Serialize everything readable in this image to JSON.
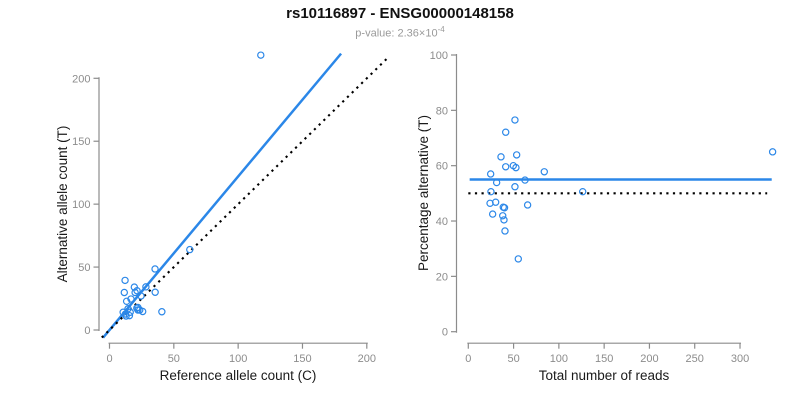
{
  "header": {
    "title": "rs10116897 - ENSG00000148158",
    "subtitle_prefix": "p-value: 2.36×10",
    "subtitle_exponent": "-4"
  },
  "colors": {
    "accent_blue": "#2b87e8",
    "dotted_black": "#000000",
    "axis_gray": "#8c8c8c",
    "tick_label_gray": "#8c8c8c",
    "axis_title_color": "#1a1a1a",
    "subtitle_gray": "#9a9a9a"
  },
  "chart_data": [
    {
      "id": "allele-count-scatter",
      "type": "scatter",
      "xlabel": "Reference allele count (C)",
      "ylabel": "Alternative allele count (T)",
      "xlim": [
        0,
        200
      ],
      "ylim": [
        0,
        220
      ],
      "xticks": [
        0,
        50,
        100,
        150,
        200
      ],
      "yticks": [
        0,
        50,
        100,
        150,
        200
      ],
      "grid": false,
      "legend": "none",
      "marker": "open-circle",
      "points": [
        [
          12.1,
          39.4
        ],
        [
          11.5,
          29.8
        ],
        [
          117.6,
          218.4
        ],
        [
          13.3,
          22.8
        ],
        [
          19.3,
          34.1
        ],
        [
          16.7,
          24.6
        ],
        [
          19.9,
          29.8
        ],
        [
          21.4,
          31.2
        ],
        [
          35.4,
          48.5
        ],
        [
          10.6,
          14.1
        ],
        [
          14.4,
          16.9
        ],
        [
          28.3,
          34.3
        ],
        [
          24.5,
          27.0
        ],
        [
          12.4,
          12.7
        ],
        [
          62.4,
          63.9
        ],
        [
          12.9,
          11.1
        ],
        [
          16.1,
          14.1
        ],
        [
          21.2,
          17.4
        ],
        [
          22.1,
          17.9
        ],
        [
          35.5,
          30.0
        ],
        [
          15.5,
          11.4
        ],
        [
          22.1,
          15.9
        ],
        [
          23.5,
          15.9
        ],
        [
          25.8,
          14.7
        ],
        [
          40.7,
          14.5
        ]
      ],
      "lines": [
        {
          "name": "fitted-line",
          "style": "solid",
          "color": "#2b87e8",
          "from": [
            -5,
            -6.1
          ],
          "to": [
            180,
            219.6
          ]
        },
        {
          "name": "identity-line",
          "style": "dotted",
          "color": "#000000",
          "from": [
            -6,
            -6
          ],
          "to": [
            216,
            216
          ]
        }
      ]
    },
    {
      "id": "percentage-vs-reads-scatter",
      "type": "scatter",
      "xlabel": "Total number of reads",
      "ylabel": "Percentage alternative (T)",
      "xlim": [
        0,
        336
      ],
      "ylim": [
        0,
        100
      ],
      "xticks": [
        0,
        50,
        100,
        150,
        200,
        250,
        300
      ],
      "yticks": [
        0,
        20,
        40,
        60,
        80,
        100
      ],
      "grid": false,
      "legend": "none",
      "marker": "open-circle",
      "points": [
        [
          51.5,
          76.5
        ],
        [
          41.3,
          72.1
        ],
        [
          336,
          65.0
        ],
        [
          36.1,
          63.2
        ],
        [
          53.4,
          63.9
        ],
        [
          41.3,
          59.6
        ],
        [
          49.7,
          60.0
        ],
        [
          52.6,
          59.3
        ],
        [
          83.9,
          57.8
        ],
        [
          24.7,
          57.0
        ],
        [
          31.3,
          53.9
        ],
        [
          62.6,
          54.8
        ],
        [
          51.5,
          52.4
        ],
        [
          25.0,
          50.6
        ],
        [
          126.3,
          50.6
        ],
        [
          24.0,
          46.4
        ],
        [
          30.2,
          46.8
        ],
        [
          38.6,
          45.0
        ],
        [
          40.0,
          44.8
        ],
        [
          65.5,
          45.8
        ],
        [
          26.9,
          42.5
        ],
        [
          38.0,
          41.9
        ],
        [
          39.4,
          40.4
        ],
        [
          40.5,
          36.4
        ],
        [
          55.2,
          26.3
        ]
      ],
      "lines": [
        {
          "name": "fitted-line",
          "style": "solid",
          "color": "#2b87e8",
          "from": [
            1.5,
            55
          ],
          "to": [
            335,
            55
          ]
        },
        {
          "name": "null-line",
          "style": "dotted",
          "color": "#000000",
          "from": [
            0,
            50
          ],
          "to": [
            330,
            50
          ]
        }
      ]
    }
  ]
}
